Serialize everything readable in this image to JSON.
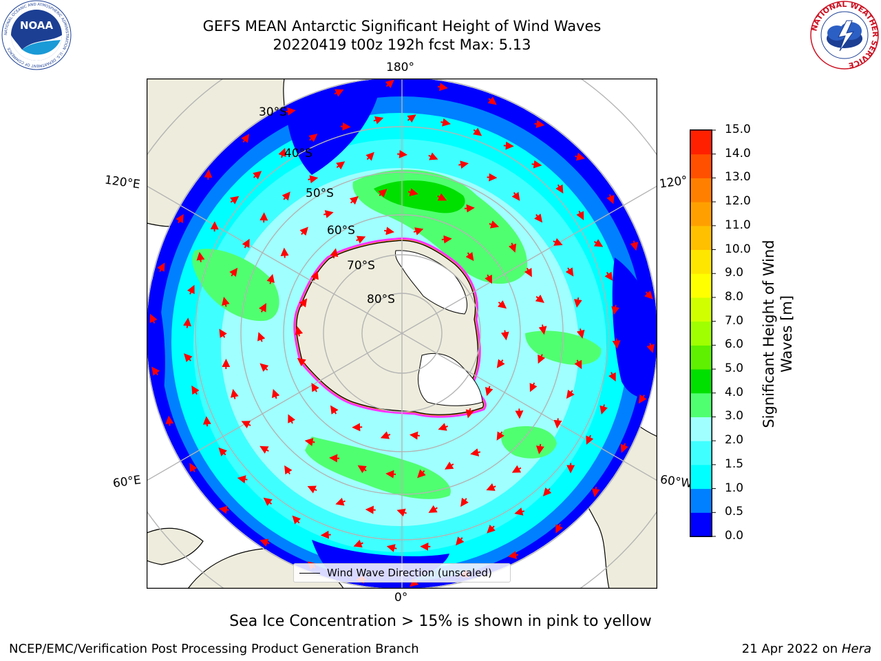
{
  "header": {
    "title_line1": "GEFS MEAN Antarctic Significant Height of Wind Waves",
    "title_line2": "20220419 t00z 192h fcst   Max: 5.13"
  },
  "logos": {
    "noaa": {
      "text": "NOAA",
      "ring_text": "NATIONAL OCEANIC AND ATMOSPHERIC ADMINISTRATION · U.S. DEPARTMENT OF COMMERCE"
    },
    "nws": {
      "ring_text": "NATIONAL WEATHER SERVICE"
    }
  },
  "map": {
    "projection": "south-polar-stereographic",
    "longitude_labels": {
      "top": "180°",
      "bottom": "0°",
      "upper_left": "120°E",
      "upper_right": "120°",
      "lower_left": "60°E",
      "lower_right": "60°W"
    },
    "latitude_labels": [
      "30°S",
      "40°S",
      "50°S",
      "60°S",
      "70°S",
      "80°S"
    ],
    "legend_label": "Wind Wave Direction (unscaled)",
    "colors": {
      "land": "#eeecdc",
      "antarctic_ice_shelf": "#ffffff",
      "arrow": "#ff0000",
      "graticule": "#b4b4b4",
      "sea_ice": [
        "#ff33ff",
        "#ff9900",
        "#ffff33"
      ]
    }
  },
  "colorbar": {
    "label_line1": "Significant Height of Wind",
    "label_line2": "Waves [m]",
    "ticks": [
      "0.0",
      "0.5",
      "1.0",
      "1.5",
      "2.0",
      "3.0",
      "4.0",
      "5.0",
      "6.0",
      "7.0",
      "8.0",
      "9.0",
      "10.0",
      "11.0",
      "12.0",
      "13.0",
      "14.0",
      "15.0"
    ],
    "colors": [
      "#0000ff",
      "#0080ff",
      "#00ffff",
      "#40ffff",
      "#a0ffff",
      "#50ff70",
      "#00e000",
      "#5ef000",
      "#a0ff00",
      "#d0ff00",
      "#ffff00",
      "#ffe600",
      "#ffc000",
      "#ffa000",
      "#ff8000",
      "#ff5000",
      "#ff2000"
    ]
  },
  "caption": "Sea Ice Concentration > 15% is shown in pink to yellow",
  "footer": {
    "left": "NCEP/EMC/Verification Post Processing Product Generation Branch",
    "right_prefix": "21 Apr 2022 on ",
    "right_host": "Hera"
  }
}
